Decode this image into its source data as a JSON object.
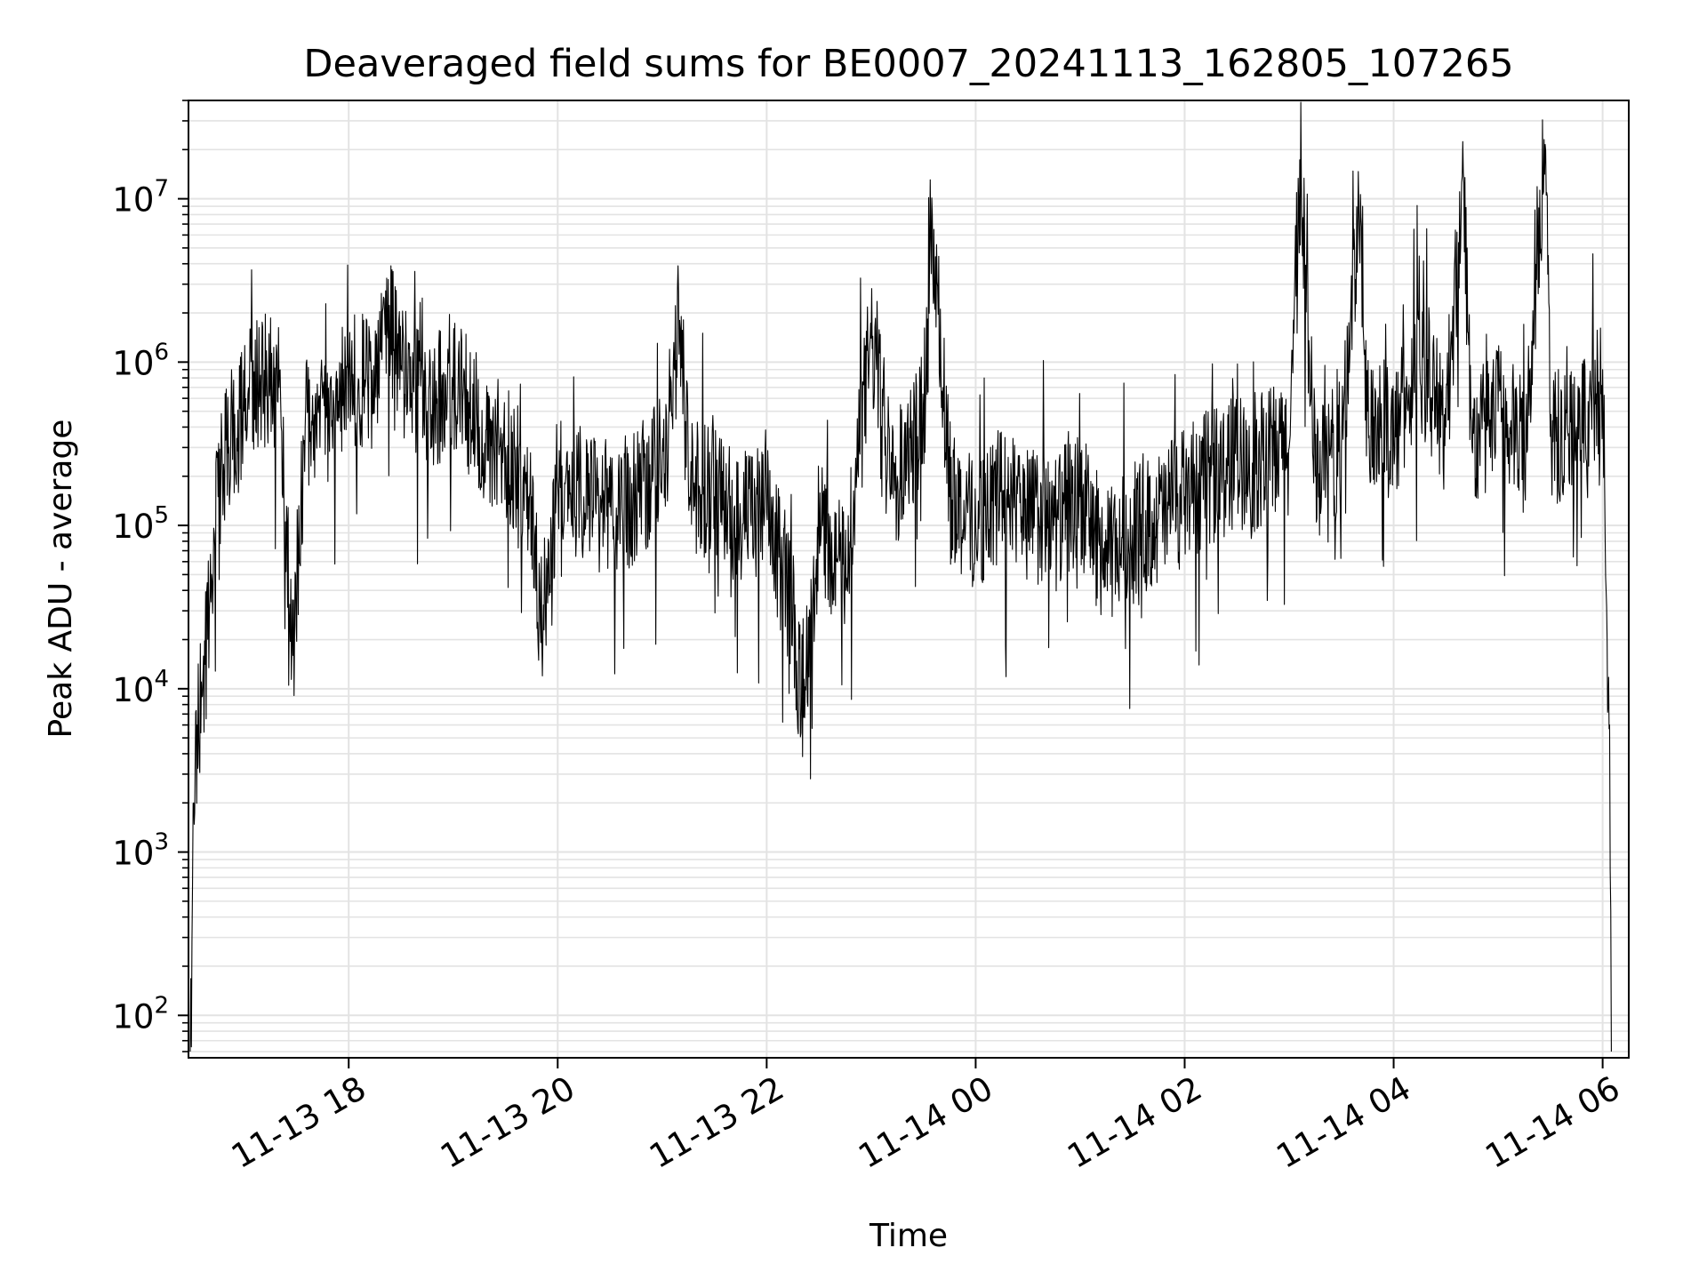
{
  "chart_data": {
    "type": "line",
    "title": "Deaveraged field sums for BE0007_20241113_162805_107265",
    "xlabel": "Time",
    "ylabel": "Peak ADU - average",
    "yscale": "log",
    "xlim": [
      "2024-11-13T16:28:00",
      "2024-11-14T06:15:00"
    ],
    "ylim": [
      55,
      40000000
    ],
    "grid": true,
    "line_color": "#000000",
    "grid_color": "#e3e3e3",
    "x_ticks": [
      {
        "value": "2024-11-13T18:00:00",
        "label": "11-13 18"
      },
      {
        "value": "2024-11-13T20:00:00",
        "label": "11-13 20"
      },
      {
        "value": "2024-11-13T22:00:00",
        "label": "11-13 22"
      },
      {
        "value": "2024-11-14T00:00:00",
        "label": "11-14 00"
      },
      {
        "value": "2024-11-14T02:00:00",
        "label": "11-14 02"
      },
      {
        "value": "2024-11-14T04:00:00",
        "label": "11-14 04"
      },
      {
        "value": "2024-11-14T06:00:00",
        "label": "11-14 06"
      }
    ],
    "y_ticks": [
      {
        "value": 100,
        "base": "10",
        "exp": "2"
      },
      {
        "value": 1000,
        "base": "10",
        "exp": "3"
      },
      {
        "value": 10000,
        "base": "10",
        "exp": "4"
      },
      {
        "value": 100000,
        "base": "10",
        "exp": "5"
      },
      {
        "value": 1000000,
        "base": "10",
        "exp": "6"
      },
      {
        "value": 10000000,
        "base": "10",
        "exp": "7"
      }
    ],
    "series": [
      {
        "x": [
          "2024-11-13T16:29:00",
          "2024-11-13T16:30:00",
          "2024-11-13T16:31:00",
          "2024-11-13T16:33:00",
          "2024-11-13T16:36:00",
          "2024-11-13T16:40:00",
          "2024-11-13T16:45:00",
          "2024-11-13T16:50:00",
          "2024-11-13T17:00:00",
          "2024-11-13T17:10:00",
          "2024-11-13T17:20:00",
          "2024-11-13T17:28:00",
          "2024-11-13T17:35:00",
          "2024-11-13T17:45:00",
          "2024-11-13T18:00:00",
          "2024-11-13T18:15:00",
          "2024-11-13T18:20:00",
          "2024-11-13T18:30:00",
          "2024-11-13T18:45:00",
          "2024-11-13T19:00:00",
          "2024-11-13T19:15:00",
          "2024-11-13T19:30:00",
          "2024-11-13T19:45:00",
          "2024-11-13T19:50:00",
          "2024-11-13T20:00:00",
          "2024-11-13T20:15:00",
          "2024-11-13T20:30:00",
          "2024-11-13T20:45:00",
          "2024-11-13T21:00:00",
          "2024-11-13T21:10:00",
          "2024-11-13T21:15:00",
          "2024-11-13T21:30:00",
          "2024-11-13T21:45:00",
          "2024-11-13T22:00:00",
          "2024-11-13T22:15:00",
          "2024-11-13T22:20:00",
          "2024-11-13T22:30:00",
          "2024-11-13T22:45:00",
          "2024-11-13T23:00:00",
          "2024-11-13T23:15:00",
          "2024-11-13T23:30:00",
          "2024-11-13T23:36:00",
          "2024-11-13T23:45:00",
          "2024-11-14T00:00:00",
          "2024-11-14T00:15:00",
          "2024-11-14T00:30:00",
          "2024-11-14T00:45:00",
          "2024-11-14T01:00:00",
          "2024-11-14T01:15:00",
          "2024-11-14T01:30:00",
          "2024-11-14T01:45:00",
          "2024-11-14T02:00:00",
          "2024-11-14T02:15:00",
          "2024-11-14T02:30:00",
          "2024-11-14T02:45:00",
          "2024-11-14T03:00:00",
          "2024-11-14T03:07:00",
          "2024-11-14T03:15:00",
          "2024-11-14T03:30:00",
          "2024-11-14T03:40:00",
          "2024-11-14T03:45:00",
          "2024-11-14T04:00:00",
          "2024-11-14T04:15:00",
          "2024-11-14T04:30:00",
          "2024-11-14T04:40:00",
          "2024-11-14T04:45:00",
          "2024-11-14T05:00:00",
          "2024-11-14T05:15:00",
          "2024-11-14T05:27:00",
          "2024-11-14T05:30:00",
          "2024-11-14T05:45:00",
          "2024-11-14T05:55:00",
          "2024-11-14T06:00:00",
          "2024-11-14T06:02:00",
          "2024-11-14T06:04:00",
          "2024-11-14T06:05:00"
        ],
        "y": [
          60,
          280,
          2000,
          6000,
          9000,
          30000,
          150000,
          300000,
          500000,
          900000,
          700000,
          16000,
          400000,
          600000,
          800000,
          700000,
          2500000,
          900000,
          500000,
          800000,
          400000,
          300000,
          150000,
          25000,
          180000,
          150000,
          130000,
          150000,
          250000,
          1800000,
          200000,
          150000,
          110000,
          120000,
          30000,
          8200,
          100000,
          50000,
          1400000,
          200000,
          500000,
          6500000,
          150000,
          100000,
          160000,
          120000,
          100000,
          150000,
          60000,
          100000,
          110000,
          150000,
          200000,
          250000,
          250000,
          300000,
          13000000,
          200000,
          300000,
          9000000,
          500000,
          350000,
          1000000,
          400000,
          14500000,
          300000,
          500000,
          300000,
          21500000,
          350000,
          400000,
          500000,
          900000,
          40000,
          6000,
          60
        ]
      }
    ]
  }
}
